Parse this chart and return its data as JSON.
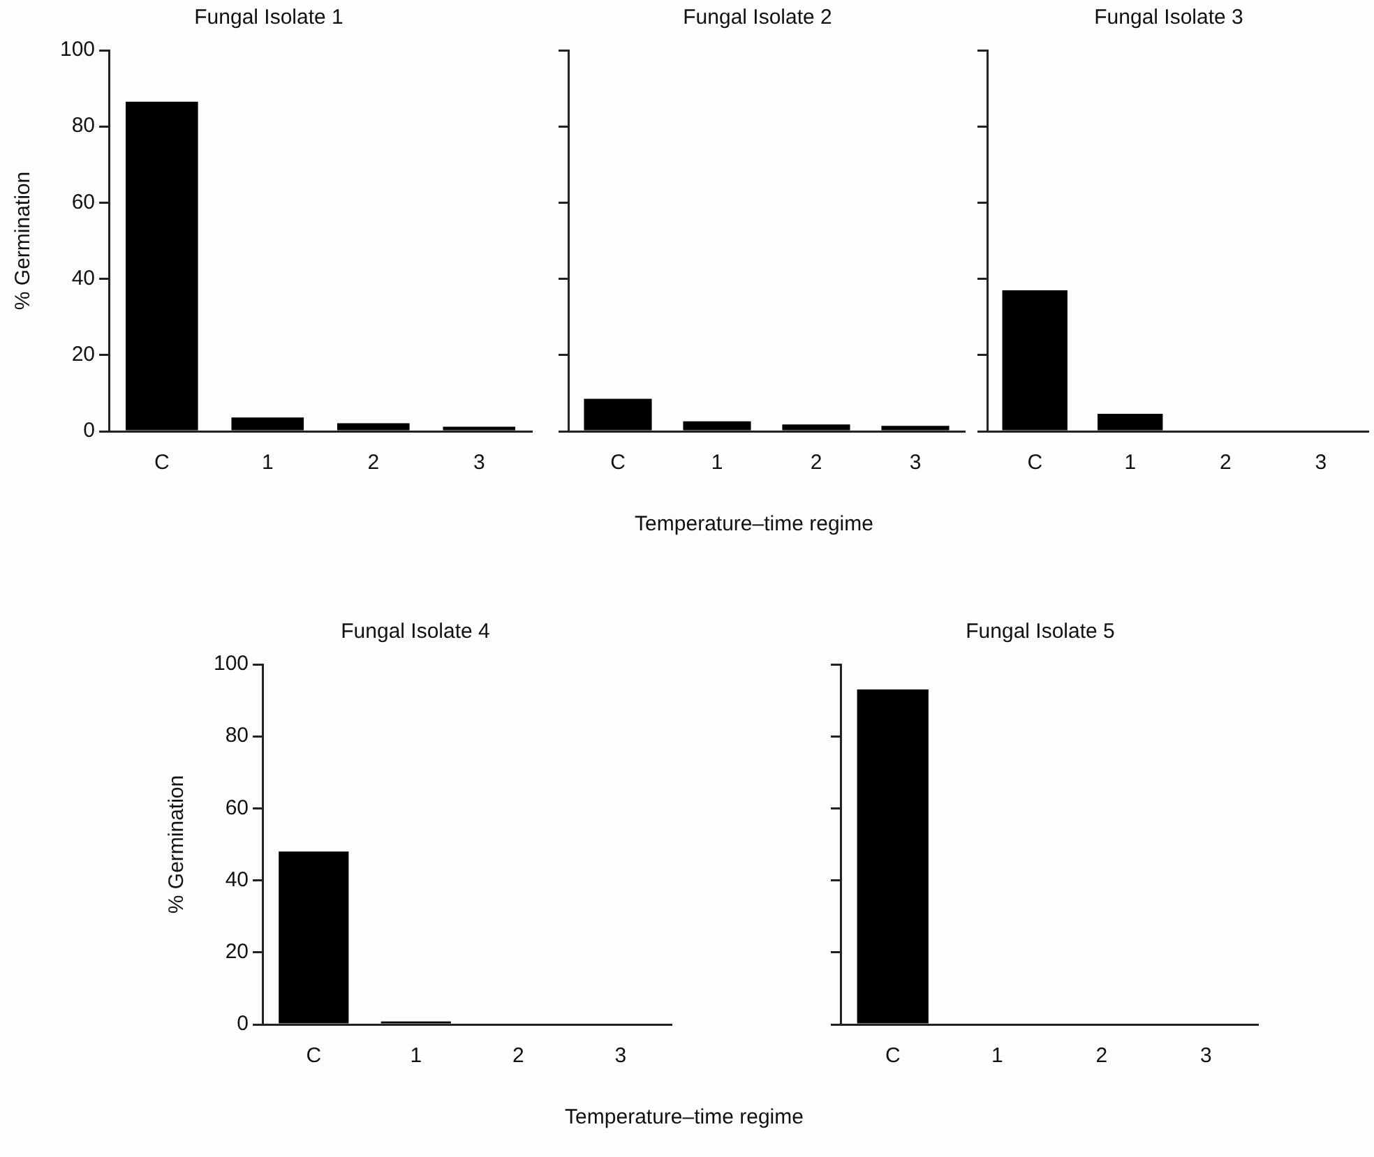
{
  "chart_data": [
    {
      "type": "bar",
      "title": "Fungal Isolate 1",
      "ylabel": "% Germination",
      "categories": [
        "C",
        "1",
        "2",
        "3"
      ],
      "values": [
        86.5,
        3.6,
        2.1,
        1.2
      ],
      "color": "#000000",
      "ylim": [
        0,
        100
      ],
      "yticks": [
        0,
        20,
        40,
        60,
        80,
        100
      ],
      "grid": false
    },
    {
      "type": "bar",
      "title": "Fungal Isolate 2",
      "xlabel": "Temperature–time regime",
      "categories": [
        "C",
        "1",
        "2",
        "3"
      ],
      "values": [
        8.5,
        2.6,
        1.8,
        1.4
      ],
      "color": "#000000",
      "ylim": [
        0,
        100
      ],
      "yticks": [
        0,
        20,
        40,
        60,
        80,
        100
      ],
      "grid": false,
      "tick_labels": "x"
    },
    {
      "type": "bar",
      "title": "Fungal Isolate 3",
      "categories": [
        "C",
        "1",
        "2",
        "3"
      ],
      "values": [
        37,
        4.6,
        0,
        0
      ],
      "color": "#000000",
      "ylim": [
        0,
        100
      ],
      "yticks": [
        0,
        20,
        40,
        60,
        80,
        100
      ],
      "grid": false,
      "tick_labels": "x"
    },
    {
      "type": "bar",
      "title": "Fungal Isolate 4",
      "ylabel": "% Germination",
      "xlabel": "Temperature–time regime",
      "categories": [
        "C",
        "1",
        "2",
        "3"
      ],
      "values": [
        48,
        0.8,
        0,
        0
      ],
      "color": "#000000",
      "ylim": [
        0,
        100
      ],
      "yticks": [
        0,
        20,
        40,
        60,
        80,
        100
      ],
      "grid": false
    },
    {
      "type": "bar",
      "title": "Fungal Isolate 5",
      "categories": [
        "C",
        "1",
        "2",
        "3"
      ],
      "values": [
        93,
        0,
        0,
        0
      ],
      "color": "#000000",
      "ylim": [
        0,
        100
      ],
      "yticks": [
        0,
        20,
        40,
        60,
        80,
        100
      ],
      "grid": false,
      "tick_labels": "x"
    }
  ]
}
